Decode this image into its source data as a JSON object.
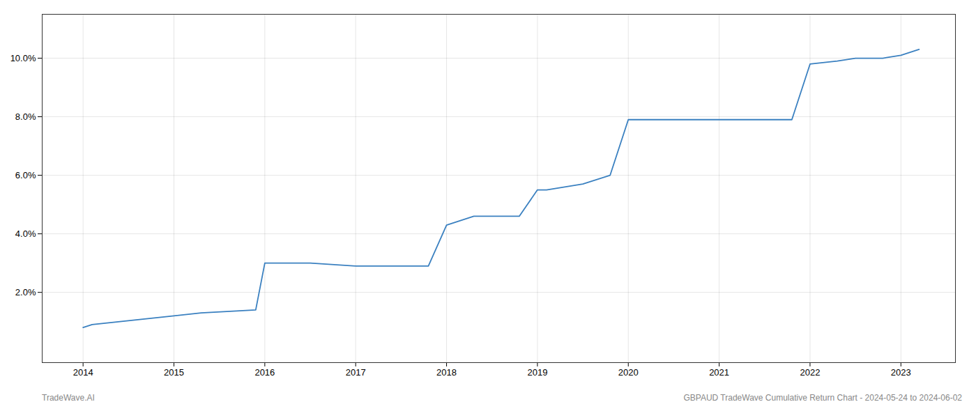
{
  "chart_data": {
    "type": "line",
    "x": [
      2014.0,
      2014.1,
      2015.0,
      2015.3,
      2015.9,
      2016.0,
      2016.5,
      2017.0,
      2017.3,
      2017.5,
      2017.8,
      2018.0,
      2018.3,
      2018.8,
      2019.0,
      2019.1,
      2019.5,
      2019.8,
      2020.0,
      2020.05,
      2020.5,
      2021.0,
      2021.1,
      2021.5,
      2021.8,
      2022.0,
      2022.3,
      2022.5,
      2022.8,
      2023.0,
      2023.2
    ],
    "values": [
      0.008,
      0.009,
      0.012,
      0.013,
      0.014,
      0.03,
      0.03,
      0.029,
      0.029,
      0.029,
      0.029,
      0.043,
      0.046,
      0.046,
      0.055,
      0.055,
      0.057,
      0.06,
      0.079,
      0.079,
      0.079,
      0.079,
      0.079,
      0.079,
      0.079,
      0.098,
      0.099,
      0.1,
      0.1,
      0.101,
      0.103
    ],
    "color": "#3a80c0",
    "xlim": [
      2013.55,
      2023.6
    ],
    "ylim": [
      -0.004,
      0.115
    ],
    "xticks": [
      2014,
      2015,
      2016,
      2017,
      2018,
      2019,
      2020,
      2021,
      2022,
      2023
    ],
    "yticks": [
      {
        "value": 0.02,
        "label": "2.0%"
      },
      {
        "value": 0.04,
        "label": "4.0%"
      },
      {
        "value": 0.06,
        "label": "6.0%"
      },
      {
        "value": 0.08,
        "label": "8.0%"
      },
      {
        "value": 0.1,
        "label": "10.0%"
      }
    ],
    "grid": true,
    "annotations": [
      "TradeWave.AI",
      "GBPAUD TradeWave Cumulative Return Chart - 2024-05-24 to 2024-06-02"
    ]
  }
}
